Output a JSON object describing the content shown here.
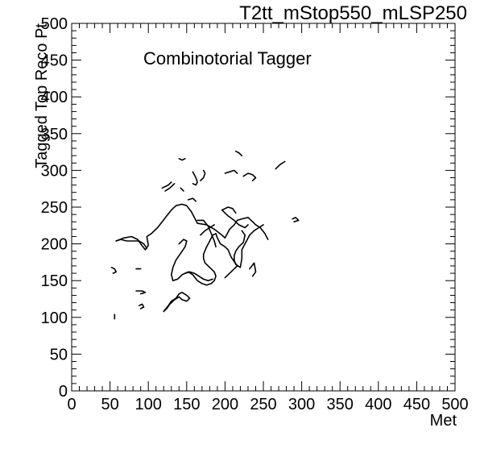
{
  "chart_data": {
    "type": "contour",
    "title": "T2tt_mStop550_mLSP250",
    "annotation": "Combinotorial Tagger",
    "xlabel": "Met",
    "ylabel": "Tagged Top Reco Pt",
    "xlim": [
      0,
      500
    ],
    "ylim": [
      0,
      500
    ],
    "xticks": [
      "0",
      "50",
      "100",
      "150",
      "200",
      "250",
      "300",
      "350",
      "400",
      "450",
      "500"
    ],
    "yticks": [
      "0",
      "50",
      "100",
      "150",
      "200",
      "250",
      "300",
      "350",
      "400",
      "450",
      "500"
    ],
    "grid": false,
    "contours": [
      {
        "points": [
          [
            58,
            204
          ],
          [
            68,
            208
          ],
          [
            78,
            210
          ],
          [
            86,
            206
          ],
          [
            90,
            200
          ],
          [
            96,
            192
          ],
          [
            100,
            198
          ],
          [
            98,
            210
          ],
          [
            104,
            214
          ],
          [
            112,
            222
          ],
          [
            118,
            230
          ],
          [
            124,
            238
          ],
          [
            130,
            246
          ],
          [
            136,
            252
          ],
          [
            144,
            254
          ],
          [
            150,
            252
          ],
          [
            156,
            244
          ],
          [
            160,
            236
          ],
          [
            164,
            228
          ],
          [
            176,
            226
          ],
          [
            186,
            220
          ],
          [
            196,
            212
          ],
          [
            200,
            208
          ],
          [
            206,
            220
          ],
          [
            212,
            226
          ],
          [
            216,
            232
          ],
          [
            222,
            234
          ],
          [
            230,
            236
          ],
          [
            234,
            232
          ],
          [
            240,
            226
          ],
          [
            246,
            222
          ],
          [
            252,
            214
          ],
          [
            256,
            206
          ]
        ]
      },
      {
        "points": [
          [
            58,
            204
          ],
          [
            64,
            206
          ],
          [
            72,
            204
          ],
          [
            80,
            204
          ],
          [
            88,
            204
          ],
          [
            94,
            200
          ],
          [
            98,
            194
          ]
        ]
      },
      {
        "points": [
          [
            168,
            212
          ],
          [
            174,
            218
          ],
          [
            180,
            222
          ],
          [
            186,
            226
          ]
        ]
      },
      {
        "points": [
          [
            164,
            232
          ],
          [
            172,
            232
          ],
          [
            178,
            224
          ],
          [
            182,
            214
          ],
          [
            186,
            204
          ],
          [
            188,
            196
          ]
        ]
      },
      {
        "points": [
          [
            196,
            246
          ],
          [
            204,
            238
          ],
          [
            212,
            232
          ],
          [
            218,
            226
          ],
          [
            226,
            222
          ],
          [
            230,
            226
          ]
        ]
      },
      {
        "points": [
          [
            176,
            196
          ],
          [
            180,
            204
          ],
          [
            184,
            212
          ],
          [
            188,
            214
          ],
          [
            190,
            208
          ],
          [
            194,
            200
          ],
          [
            200,
            196
          ],
          [
            204,
            192
          ],
          [
            208,
            182
          ],
          [
            212,
            176
          ],
          [
            216,
            170
          ],
          [
            212,
            166
          ],
          [
            206,
            160
          ],
          [
            200,
            154
          ]
        ]
      },
      {
        "points": [
          [
            140,
            200
          ],
          [
            146,
            206
          ],
          [
            150,
            204
          ],
          [
            148,
            196
          ],
          [
            144,
            190
          ],
          [
            140,
            184
          ],
          [
            136,
            178
          ],
          [
            132,
            168
          ],
          [
            130,
            158
          ],
          [
            132,
            150
          ],
          [
            138,
            152
          ],
          [
            144,
            158
          ],
          [
            152,
            162
          ],
          [
            158,
            158
          ],
          [
            164,
            150
          ],
          [
            170,
            146
          ],
          [
            176,
            144
          ],
          [
            182,
            146
          ],
          [
            186,
            150
          ],
          [
            188,
            156
          ],
          [
            186,
            162
          ],
          [
            180,
            168
          ],
          [
            174,
            174
          ],
          [
            172,
            180
          ],
          [
            172,
            186
          ],
          [
            176,
            196
          ]
        ]
      },
      {
        "points": [
          [
            148,
            160
          ],
          [
            154,
            162
          ],
          [
            160,
            160
          ],
          [
            166,
            156
          ],
          [
            172,
            152
          ],
          [
            178,
            150
          ],
          [
            184,
            152
          ]
        ]
      },
      {
        "points": [
          [
            196,
            246
          ],
          [
            200,
            248
          ],
          [
            204,
            250
          ],
          [
            210,
            248
          ],
          [
            214,
            242
          ]
        ]
      },
      {
        "points": [
          [
            222,
            218
          ],
          [
            226,
            212
          ],
          [
            224,
            202
          ],
          [
            218,
            196
          ],
          [
            214,
            190
          ],
          [
            212,
            184
          ],
          [
            212,
            178
          ],
          [
            214,
            172
          ],
          [
            220,
            168
          ],
          [
            222,
            180
          ],
          [
            222,
            192
          ],
          [
            226,
            200
          ],
          [
            232,
            212
          ],
          [
            238,
            218
          ],
          [
            244,
            222
          ],
          [
            250,
            226
          ]
        ]
      },
      {
        "points": [
          [
            120,
            108
          ],
          [
            126,
            116
          ],
          [
            130,
            122
          ],
          [
            136,
            126
          ],
          [
            140,
            132
          ],
          [
            144,
            134
          ],
          [
            150,
            130
          ],
          [
            154,
            126
          ],
          [
            150,
            122
          ],
          [
            144,
            124
          ],
          [
            140,
            128
          ],
          [
            134,
            124
          ],
          [
            128,
            118
          ],
          [
            124,
            112
          ],
          [
            120,
            108
          ]
        ]
      },
      {
        "points": [
          [
            118,
            276
          ],
          [
            126,
            280
          ],
          [
            130,
            284
          ]
        ]
      },
      {
        "points": [
          [
            122,
            272
          ],
          [
            128,
            276
          ],
          [
            134,
            282
          ]
        ]
      },
      {
        "points": [
          [
            158,
            298
          ],
          [
            162,
            290
          ],
          [
            164,
            284
          ],
          [
            162,
            280
          ],
          [
            158,
            282
          ]
        ]
      },
      {
        "points": [
          [
            168,
            286
          ],
          [
            172,
            290
          ],
          [
            174,
            296
          ],
          [
            172,
            300
          ]
        ]
      },
      {
        "points": [
          [
            200,
            296
          ],
          [
            206,
            298
          ],
          [
            212,
            300
          ],
          [
            216,
            296
          ]
        ]
      },
      {
        "points": [
          [
            224,
            292
          ],
          [
            230,
            296
          ],
          [
            236,
            294
          ],
          [
            240,
            290
          ],
          [
            236,
            286
          ]
        ]
      },
      {
        "points": [
          [
            266,
            302
          ],
          [
            272,
            308
          ],
          [
            278,
            312
          ]
        ]
      },
      {
        "points": [
          [
            214,
            326
          ],
          [
            218,
            324
          ],
          [
            222,
            320
          ]
        ]
      },
      {
        "points": [
          [
            140,
            316
          ],
          [
            144,
            314
          ],
          [
            148,
            316
          ]
        ]
      },
      {
        "points": [
          [
            232,
            166
          ],
          [
            238,
            174
          ],
          [
            240,
            162
          ],
          [
            236,
            156
          ]
        ]
      },
      {
        "points": [
          [
            288,
            234
          ],
          [
            292,
            236
          ],
          [
            296,
            232
          ],
          [
            290,
            230
          ]
        ]
      },
      {
        "points": [
          [
            52,
            168
          ],
          [
            56,
            166
          ],
          [
            58,
            162
          ],
          [
            54,
            160
          ]
        ]
      },
      {
        "points": [
          [
            84,
            166
          ],
          [
            90,
            166
          ]
        ]
      },
      {
        "points": [
          [
            84,
            136
          ],
          [
            92,
            136
          ],
          [
            96,
            134
          ],
          [
            90,
            132
          ]
        ]
      },
      {
        "points": [
          [
            88,
            116
          ],
          [
            92,
            118
          ],
          [
            94,
            114
          ],
          [
            90,
            112
          ]
        ]
      },
      {
        "points": [
          [
            56,
            98
          ],
          [
            56,
            104
          ]
        ]
      },
      {
        "points": [
          [
            142,
            276
          ],
          [
            146,
            272
          ]
        ]
      },
      {
        "points": [
          [
            152,
            260
          ],
          [
            158,
            262
          ],
          [
            162,
            258
          ]
        ]
      }
    ]
  }
}
